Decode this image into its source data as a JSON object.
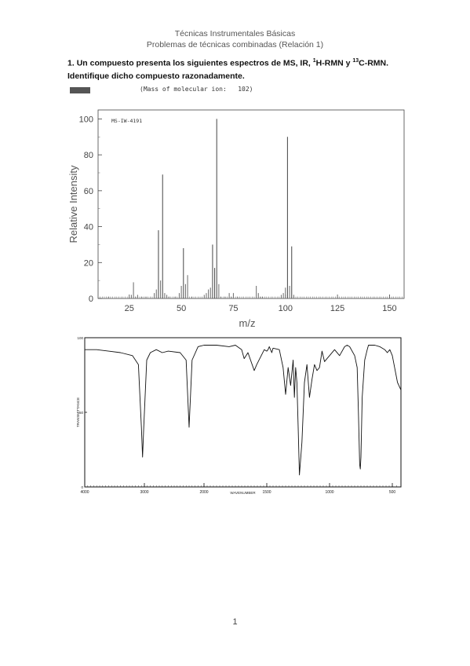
{
  "header": {
    "line1": "Técnicas Instrumentales Básicas",
    "line2": "Problemas de técnicas combinadas (Relación 1)"
  },
  "question": {
    "number": "1.",
    "text_a": "Un compuesto presenta los siguientes espectros de MS, IR, ",
    "sup1": "1",
    "text_b": "H-RMN y ",
    "sup2": "13",
    "text_c": "C-RMN. Identifique dicho compuesto razonadamente."
  },
  "ms_header": {
    "molecular_ion": "(Mass of molecular ion:   102)"
  },
  "chart_data": [
    {
      "type": "bar",
      "subtype": "mass-spectrum",
      "label": "MS-IW-4191",
      "xlabel": "m/z",
      "ylabel": "Relative Intensity",
      "xlim": [
        10,
        157
      ],
      "ylim": [
        0,
        105
      ],
      "xticks": [
        25,
        50,
        75,
        100,
        125,
        150
      ],
      "yticks": [
        0,
        20,
        40,
        60,
        80,
        100
      ],
      "x": [
        15,
        26,
        27,
        28,
        29,
        31,
        33,
        37,
        38,
        39,
        40,
        41,
        42,
        43,
        44,
        47,
        49,
        50,
        51,
        52,
        53,
        55,
        61,
        62,
        63,
        64,
        65,
        66,
        67,
        68,
        69,
        71,
        73,
        74,
        75,
        77,
        86,
        87,
        88,
        89,
        98,
        99,
        100,
        101,
        102,
        103,
        104
      ],
      "values": [
        1,
        2,
        9,
        1,
        2,
        1,
        1,
        3,
        5,
        38,
        10,
        69,
        3,
        2,
        1,
        1,
        3,
        7,
        28,
        8,
        13,
        1,
        2,
        3,
        5,
        6,
        30,
        17,
        100,
        8,
        1,
        1,
        3,
        1,
        3,
        1,
        7,
        3,
        1,
        1,
        2,
        3,
        6,
        90,
        7,
        29,
        2
      ]
    },
    {
      "type": "line",
      "subtype": "ir-spectrum",
      "xlabel": "WAVENUMBER",
      "xticks": [
        4000,
        3000,
        2000,
        1500,
        1000,
        500
      ],
      "yticks": [
        0,
        50,
        100
      ],
      "x": [
        4000,
        3800,
        3600,
        3400,
        3200,
        3100,
        3050,
        3030,
        3010,
        2960,
        2900,
        2800,
        2700,
        2600,
        2400,
        2300,
        2250,
        2200,
        2100,
        2000,
        1950,
        1900,
        1800,
        1750,
        1700,
        1680,
        1650,
        1600,
        1580,
        1520,
        1500,
        1490,
        1480,
        1460,
        1450,
        1400,
        1370,
        1350,
        1330,
        1310,
        1290,
        1280,
        1270,
        1260,
        1250,
        1240,
        1220,
        1200,
        1180,
        1160,
        1140,
        1120,
        1100,
        1080,
        1060,
        1040,
        1020,
        1000,
        960,
        920,
        880,
        860,
        840,
        800,
        780,
        770,
        760,
        755,
        750,
        740,
        720,
        700,
        690,
        660,
        640,
        600,
        560,
        540,
        520,
        500,
        470,
        450
      ],
      "values": [
        92,
        92,
        91,
        90,
        88,
        82,
        40,
        20,
        40,
        85,
        90,
        92,
        90,
        91,
        90,
        85,
        40,
        85,
        94,
        95,
        95,
        95,
        94,
        95,
        92,
        86,
        90,
        78,
        82,
        92,
        91,
        92,
        94,
        90,
        93,
        92,
        80,
        62,
        80,
        68,
        85,
        60,
        80,
        70,
        40,
        8,
        30,
        70,
        82,
        60,
        72,
        82,
        78,
        80,
        91,
        84,
        86,
        88,
        92,
        88,
        94,
        95,
        94,
        88,
        80,
        50,
        15,
        12,
        20,
        60,
        85,
        92,
        95,
        95,
        95,
        94,
        92,
        90,
        92,
        88,
        70,
        65
      ]
    }
  ],
  "ir_axes": {
    "ylabel": "TRANSMITTANCE",
    "ytick_top": "100",
    "ytick_mid": "50",
    "ytick_bottom": "0",
    "xtick_labels": [
      "4000",
      "3000",
      "2000",
      "1500",
      "1000",
      "500"
    ]
  },
  "page_number": "1"
}
